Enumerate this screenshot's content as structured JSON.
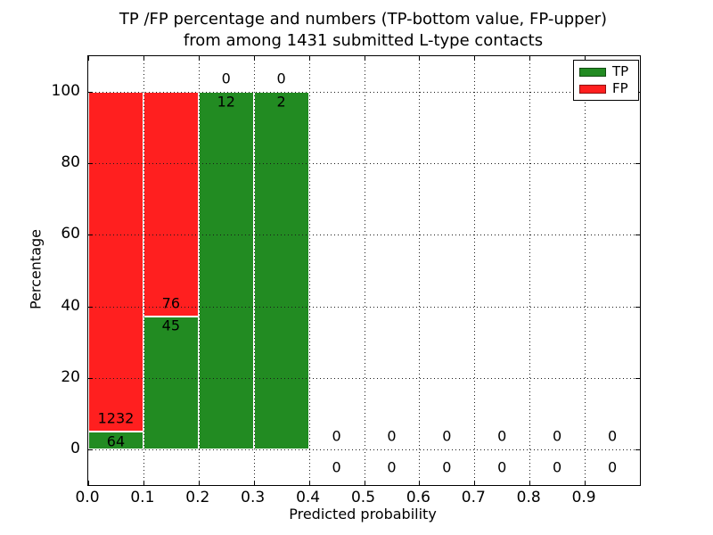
{
  "title": {
    "line1": "TP /FP percentage and numbers (TP-bottom value, FP-upper)",
    "line2": "from among 1431 submitted L-type contacts"
  },
  "axes": {
    "xlabel": "Predicted probability",
    "ylabel": "Percentage",
    "xticks": [
      "0.0",
      "0.1",
      "0.2",
      "0.3",
      "0.4",
      "0.5",
      "0.6",
      "0.7",
      "0.8",
      "0.9"
    ],
    "yticks": [
      0,
      20,
      40,
      60,
      80,
      100
    ],
    "xlim": [
      0.0,
      1.0
    ],
    "ylim": [
      -10,
      110
    ],
    "grid": "dotted"
  },
  "legend": {
    "position": "upper-right",
    "items": [
      {
        "label": "TP",
        "color": "#228b22"
      },
      {
        "label": "FP",
        "color": "#ff1f1f"
      }
    ]
  },
  "colors": {
    "tp": "#228b22",
    "fp": "#ff1f1f",
    "bar_edge": "#ffffff",
    "frame": "#000000"
  },
  "chart_data": {
    "type": "bar",
    "stacked": true,
    "normalized_to_percent": true,
    "title": "TP /FP percentage and numbers (TP-bottom value, FP-upper) from among 1431 submitted L-type contacts",
    "xlabel": "Predicted probability",
    "ylabel": "Percentage",
    "total_contacts": 1431,
    "series_names": [
      "TP",
      "FP"
    ],
    "bins": [
      {
        "range": [
          0.0,
          0.1
        ],
        "tp": 64,
        "fp": 1232,
        "tp_pct": 4.94,
        "fp_pct": 95.06
      },
      {
        "range": [
          0.1,
          0.2
        ],
        "tp": 45,
        "fp": 76,
        "tp_pct": 37.19,
        "fp_pct": 62.81
      },
      {
        "range": [
          0.2,
          0.3
        ],
        "tp": 12,
        "fp": 0,
        "tp_pct": 100,
        "fp_pct": 0
      },
      {
        "range": [
          0.3,
          0.4
        ],
        "tp": 2,
        "fp": 0,
        "tp_pct": 100,
        "fp_pct": 0
      },
      {
        "range": [
          0.4,
          0.5
        ],
        "tp": 0,
        "fp": 0,
        "tp_pct": 0,
        "fp_pct": 0
      },
      {
        "range": [
          0.5,
          0.6
        ],
        "tp": 0,
        "fp": 0,
        "tp_pct": 0,
        "fp_pct": 0
      },
      {
        "range": [
          0.6,
          0.7
        ],
        "tp": 0,
        "fp": 0,
        "tp_pct": 0,
        "fp_pct": 0
      },
      {
        "range": [
          0.7,
          0.8
        ],
        "tp": 0,
        "fp": 0,
        "tp_pct": 0,
        "fp_pct": 0
      },
      {
        "range": [
          0.8,
          0.9
        ],
        "tp": 0,
        "fp": 0,
        "tp_pct": 0,
        "fp_pct": 0
      },
      {
        "range": [
          0.9,
          1.0
        ],
        "tp": 0,
        "fp": 0,
        "tp_pct": 0,
        "fp_pct": 0
      }
    ]
  }
}
